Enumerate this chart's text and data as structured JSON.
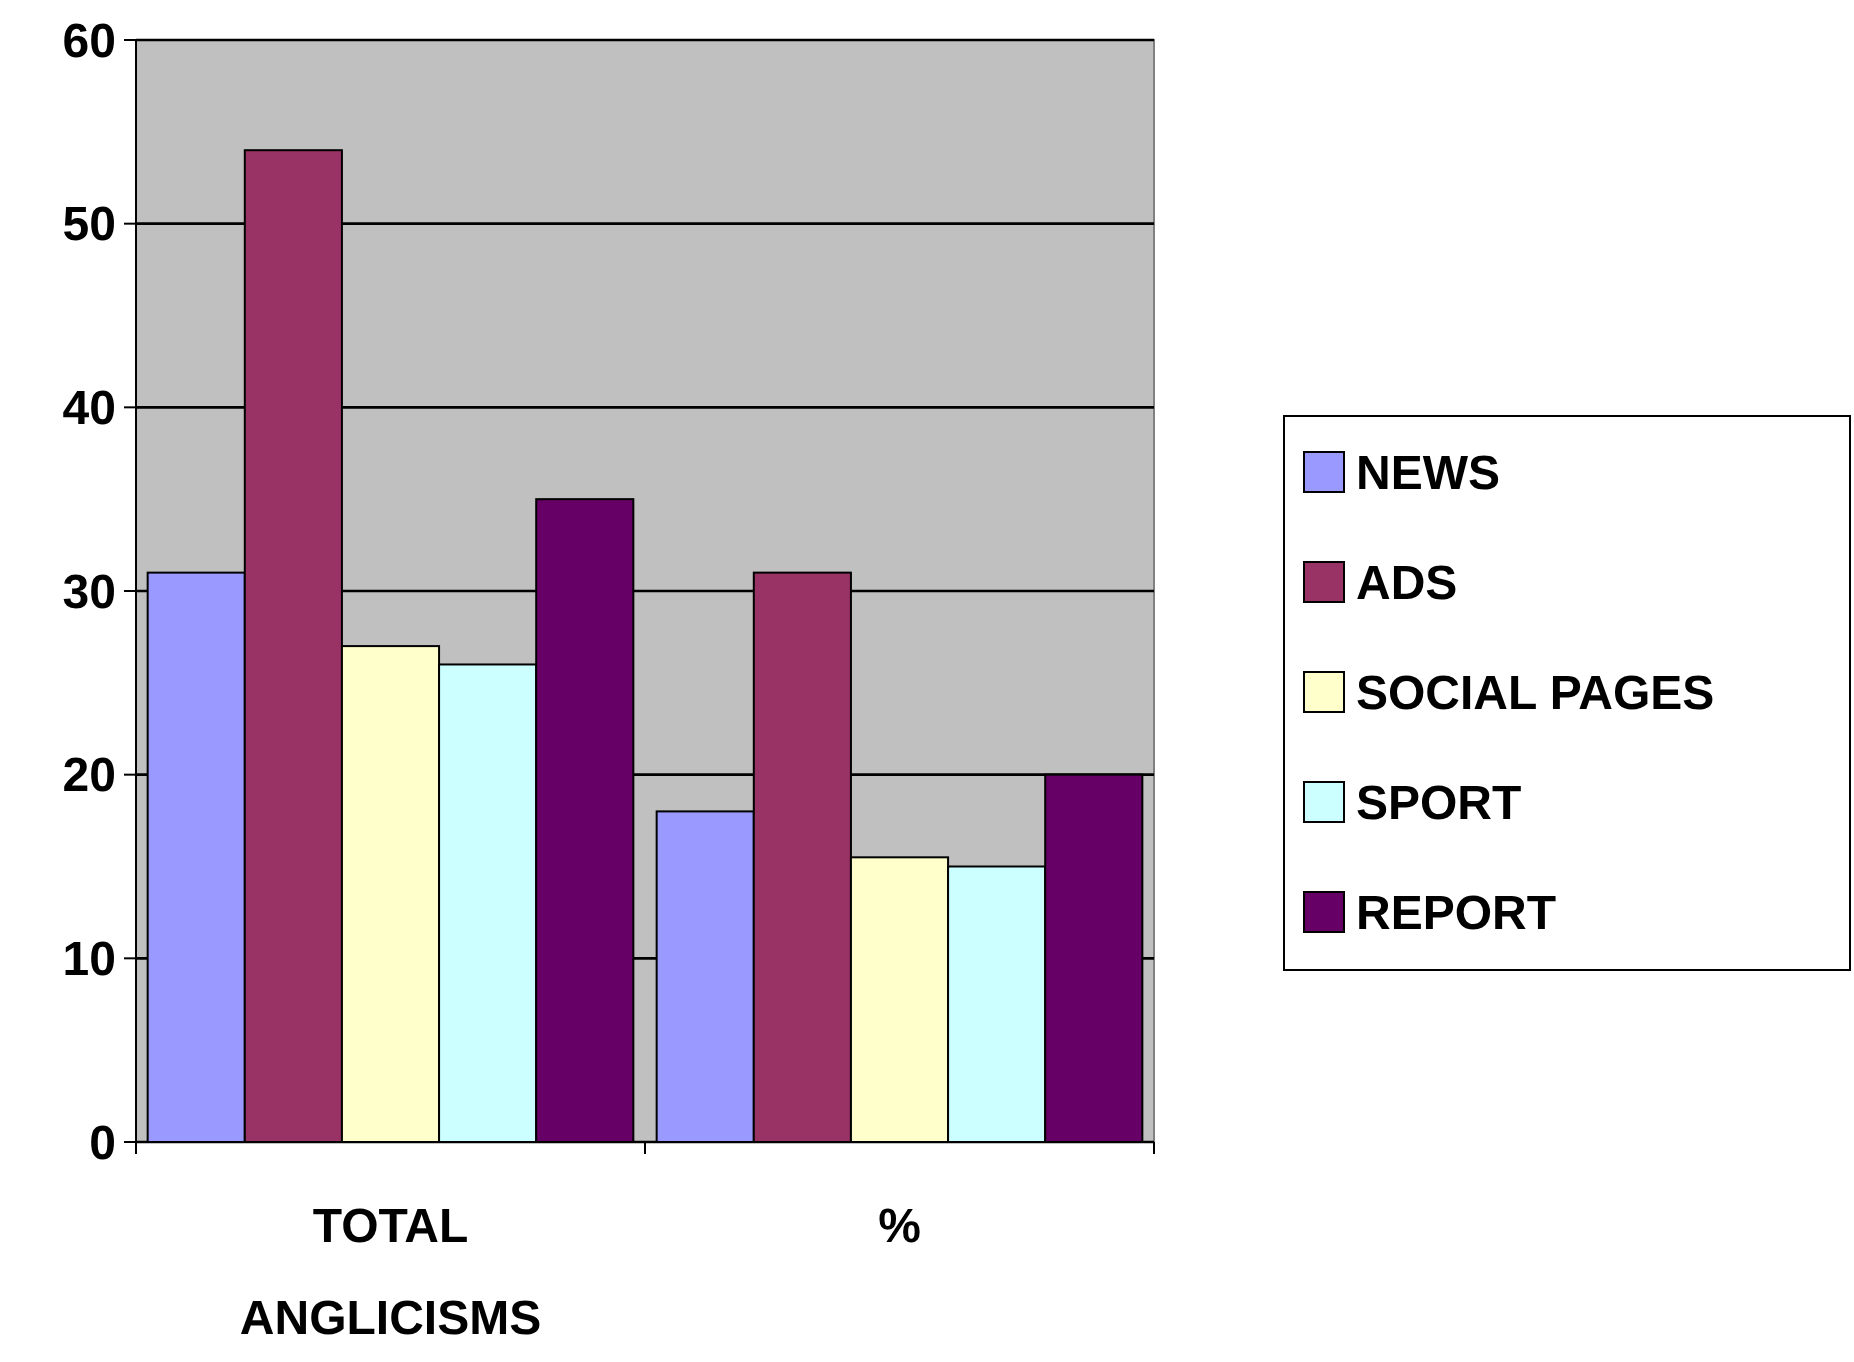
{
  "chart_data": {
    "type": "bar",
    "categories": [
      "TOTAL ANGLICISMS",
      "%"
    ],
    "series": [
      {
        "name": "NEWS",
        "color": "#9999ff",
        "values": [
          31,
          18
        ]
      },
      {
        "name": "ADS",
        "color": "#993366",
        "values": [
          54,
          31
        ]
      },
      {
        "name": "SOCIAL PAGES",
        "color": "#ffffcc",
        "values": [
          27,
          15.5
        ]
      },
      {
        "name": "SPORT",
        "color": "#ccffff",
        "values": [
          26,
          15
        ]
      },
      {
        "name": "REPORT",
        "color": "#660066",
        "values": [
          35,
          20
        ]
      }
    ],
    "ylim": [
      0,
      60
    ],
    "yticks": [
      0,
      10,
      20,
      30,
      40,
      50,
      60
    ],
    "grid": "y",
    "legend": "right"
  }
}
